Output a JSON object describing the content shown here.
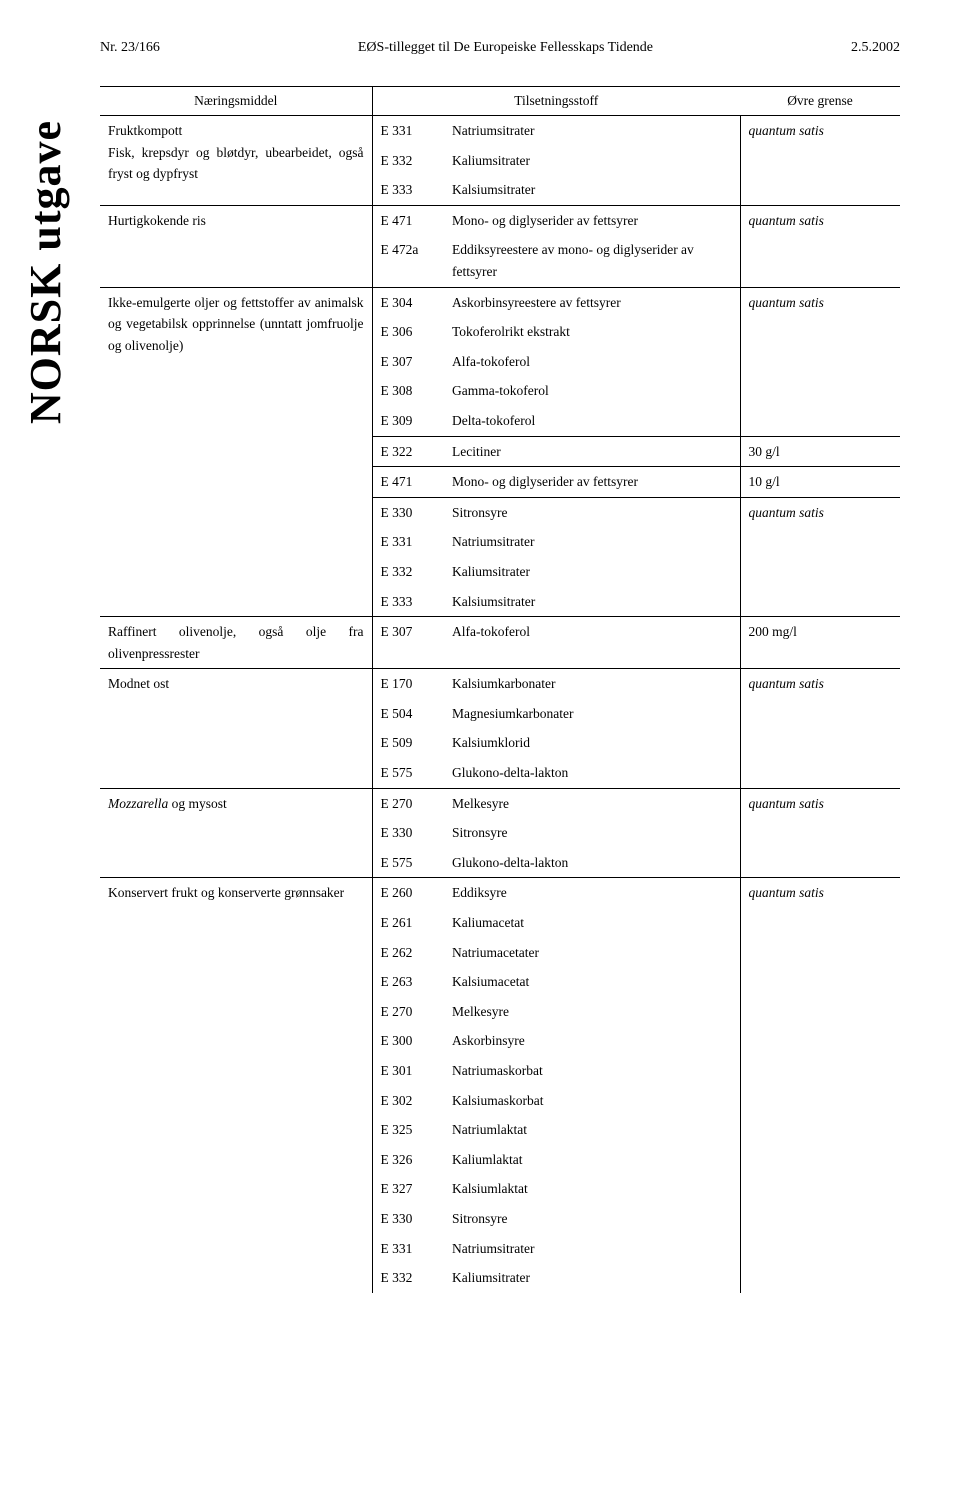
{
  "header": {
    "left": "Nr. 23/166",
    "center": "EØS-tillegget til De Europeiske Fellesskaps Tidende",
    "right": "2.5.2002"
  },
  "sidebar": "NORSK utgave",
  "columns": {
    "food": "Næringsmiddel",
    "additive": "Tilsetningsstoff",
    "limit": "Øvre grense"
  },
  "groups": [
    {
      "food": "Fruktkompott\nFisk, krepsdyr og bløtdyr, ubearbeidet, også fryst og dypfryst",
      "subgroups": [
        {
          "rows": [
            {
              "code": "E 331",
              "name": "Natriumsitrater",
              "limit": "quantum satis",
              "italicLimit": true
            },
            {
              "code": "E 332",
              "name": "Kaliumsitrater"
            },
            {
              "code": "E 333",
              "name": "Kalsiumsitrater"
            }
          ]
        }
      ]
    },
    {
      "food": "Hurtigkokende ris",
      "subgroups": [
        {
          "rows": [
            {
              "code": "E 471",
              "name": "Mono- og diglyserider av fettsyrer",
              "limit": "quantum satis",
              "italicLimit": true
            },
            {
              "code": "E 472a",
              "name": "Eddiksyreestere av mono- og diglyserider av fettsyrer"
            }
          ]
        }
      ]
    },
    {
      "food": "Ikke-emulgerte oljer og fettstoffer av animalsk og vegetabilsk opprinnelse (unntatt jomfruolje og olivenolje)",
      "subgroups": [
        {
          "rows": [
            {
              "code": "E 304",
              "name": "Askorbinsyreestere av fettsyrer",
              "limit": "quantum satis",
              "italicLimit": true
            },
            {
              "code": "E 306",
              "name": "Tokoferolrikt ekstrakt"
            },
            {
              "code": "E 307",
              "name": "Alfa-tokoferol"
            },
            {
              "code": "E 308",
              "name": "Gamma-tokoferol"
            },
            {
              "code": "E 309",
              "name": "Delta-tokoferol"
            }
          ]
        },
        {
          "rows": [
            {
              "code": "E 322",
              "name": "Lecitiner",
              "limit": "30 g/l"
            }
          ]
        },
        {
          "rows": [
            {
              "code": "E 471",
              "name": "Mono- og diglyserider av fettsyrer",
              "limit": "10 g/l"
            }
          ]
        },
        {
          "rows": [
            {
              "code": "E 330",
              "name": "Sitronsyre",
              "limit": "quantum satis",
              "italicLimit": true
            },
            {
              "code": "E 331",
              "name": "Natriumsitrater"
            },
            {
              "code": "E 332",
              "name": "Kaliumsitrater"
            },
            {
              "code": "E 333",
              "name": "Kalsiumsitrater"
            }
          ]
        }
      ]
    },
    {
      "food": "Raffinert olivenolje, også olje fra olivenpressrester",
      "subgroups": [
        {
          "rows": [
            {
              "code": "E 307",
              "name": "Alfa-tokoferol",
              "limit": "200 mg/l"
            }
          ]
        }
      ]
    },
    {
      "food": "Modnet ost",
      "subgroups": [
        {
          "rows": [
            {
              "code": "E 170",
              "name": "Kalsiumkarbonater",
              "limit": "quantum satis",
              "italicLimit": true
            },
            {
              "code": "E 504",
              "name": "Magnesiumkarbonater"
            },
            {
              "code": "E 509",
              "name": "Kalsiumklorid"
            },
            {
              "code": "E 575",
              "name": "Glukono-delta-lakton"
            }
          ]
        }
      ]
    },
    {
      "food": "Mozzarella og mysost",
      "foodItalicWord": "Mozzarella",
      "subgroups": [
        {
          "rows": [
            {
              "code": "E 270",
              "name": "Melkesyre",
              "limit": "quantum satis",
              "italicLimit": true
            },
            {
              "code": "E 330",
              "name": "Sitronsyre"
            },
            {
              "code": "E 575",
              "name": "Glukono-delta-lakton"
            }
          ]
        }
      ]
    },
    {
      "food": "Konservert frukt og konserverte grønnsaker",
      "subgroups": [
        {
          "rows": [
            {
              "code": "E 260",
              "name": "Eddiksyre",
              "limit": "quantum satis",
              "italicLimit": true
            },
            {
              "code": "E 261",
              "name": "Kaliumacetat"
            },
            {
              "code": "E 262",
              "name": "Natriumacetater"
            },
            {
              "code": "E 263",
              "name": "Kalsiumacetat"
            },
            {
              "code": "E 270",
              "name": "Melkesyre"
            },
            {
              "code": "E 300",
              "name": "Askorbinsyre"
            },
            {
              "code": "E 301",
              "name": "Natriumaskorbat"
            },
            {
              "code": "E 302",
              "name": "Kalsiumaskorbat"
            },
            {
              "code": "E 325",
              "name": "Natriumlaktat"
            },
            {
              "code": "E 326",
              "name": "Kaliumlaktat"
            },
            {
              "code": "E 327",
              "name": "Kalsiumlaktat"
            },
            {
              "code": "E 330",
              "name": "Sitronsyre"
            },
            {
              "code": "E 331",
              "name": "Natriumsitrater"
            },
            {
              "code": "E 332",
              "name": "Kaliumsitrater"
            }
          ]
        }
      ]
    }
  ]
}
